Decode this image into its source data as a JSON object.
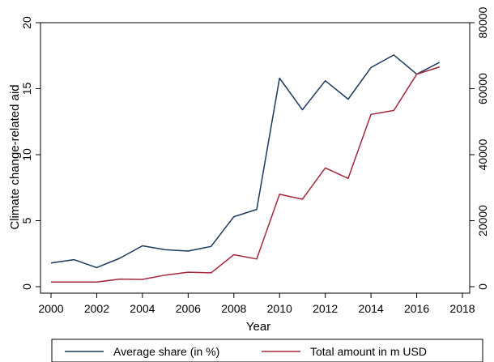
{
  "chart_data": {
    "type": "line",
    "xlabel": "Year",
    "ylabel": "Climate change-related aid",
    "x_ticks": [
      "2000",
      "2002",
      "2004",
      "2006",
      "2008",
      "2010",
      "2012",
      "2014",
      "2016",
      "2018"
    ],
    "y_left_ticks": [
      "0",
      "5",
      "10",
      "15",
      "20"
    ],
    "y_right_ticks": [
      "0",
      "20000",
      "40000",
      "60000",
      "80000"
    ],
    "xlim": [
      2000,
      2018
    ],
    "ylim_left": [
      0,
      20
    ],
    "ylim_right": [
      0,
      80000
    ],
    "grid": false,
    "legend_position": "bottom",
    "x": [
      2000,
      2001,
      2002,
      2003,
      2004,
      2005,
      2006,
      2007,
      2008,
      2009,
      2010,
      2011,
      2012,
      2013,
      2014,
      2015,
      2016,
      2017
    ],
    "series": [
      {
        "name": "Average share (in %)",
        "axis": "left",
        "color": "#1b3a5c",
        "values": [
          1.8,
          2.05,
          1.45,
          2.15,
          3.1,
          2.8,
          2.7,
          3.05,
          5.3,
          5.85,
          15.8,
          13.4,
          15.6,
          14.2,
          16.6,
          17.55,
          16.1,
          17.0
        ]
      },
      {
        "name": "Total amount in m USD",
        "axis": "right",
        "color": "#a3283c",
        "values": [
          1400,
          1400,
          1400,
          2300,
          2200,
          3500,
          4400,
          4200,
          9700,
          8400,
          28000,
          26500,
          36000,
          32800,
          52200,
          53400,
          64400,
          66600
        ]
      }
    ]
  }
}
